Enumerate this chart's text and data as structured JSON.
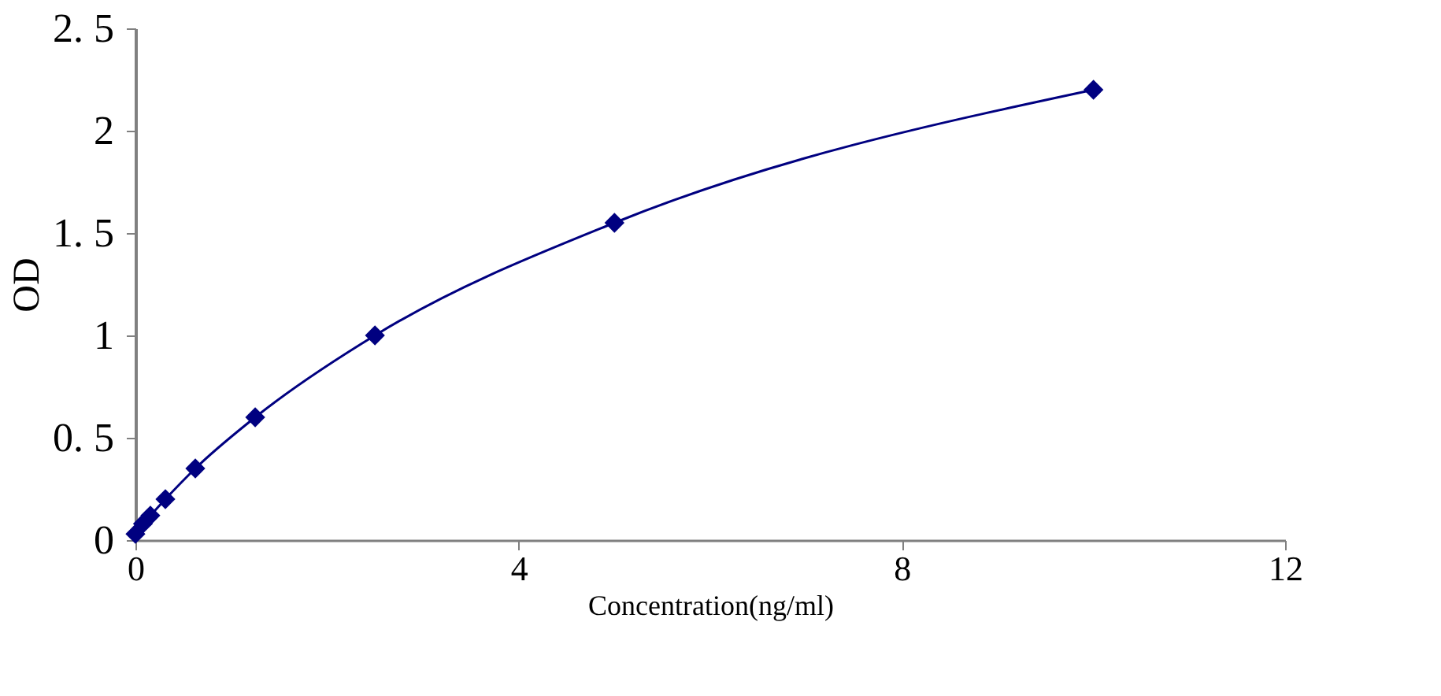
{
  "chart_data": {
    "type": "line",
    "xlabel": "Concentration(ng/ml)",
    "ylabel": "OD",
    "x": [
      0,
      0.078,
      0.156,
      0.3125,
      0.625,
      1.25,
      2.5,
      5,
      10
    ],
    "series": [
      {
        "color": "#000080",
        "values": [
          0.03,
          0.08,
          0.12,
          0.2,
          0.35,
          0.6,
          1.0,
          1.55,
          2.2
        ]
      }
    ],
    "xlim": [
      0,
      12
    ],
    "xticks": [
      0,
      4,
      8,
      12
    ],
    "ylim": [
      0,
      2.5
    ],
    "yticks": [
      0,
      {
        "value": 0.5,
        "label": "0. 5"
      },
      1,
      {
        "value": 1.5,
        "label": "1. 5"
      },
      2,
      {
        "value": 2.5,
        "label": "2. 5"
      }
    ],
    "marker": "diamond",
    "line_style": "solid",
    "grid": false
  }
}
